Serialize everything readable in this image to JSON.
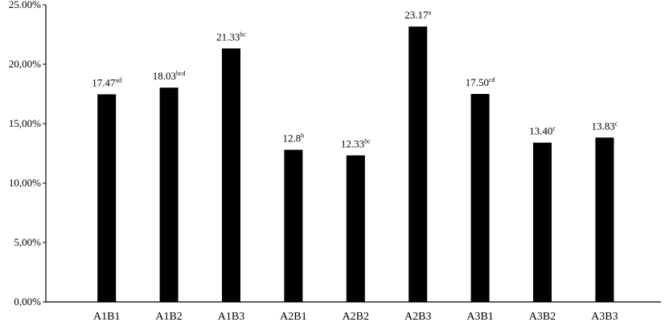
{
  "chart_data": {
    "type": "bar",
    "title": "",
    "xlabel": "",
    "ylabel": "",
    "categories": [
      "A1B1",
      "A1B2",
      "A1B3",
      "A2B1",
      "A2B2",
      "A2B3",
      "A3B1",
      "A3B2",
      "A3B3"
    ],
    "values": [
      17.47,
      18.03,
      21.33,
      12.8,
      12.33,
      23.17,
      17.5,
      13.4,
      13.83
    ],
    "data_labels": [
      {
        "value": "17.47",
        "sup": "ad"
      },
      {
        "value": "18.03",
        "sup": "bcd"
      },
      {
        "value": "21.33",
        "sup": "bc"
      },
      {
        "value": "12.8",
        "sup": "b"
      },
      {
        "value": "12.33",
        "sup": "bc"
      },
      {
        "value": "23.17",
        "sup": "a"
      },
      {
        "value": "17.50",
        "sup": "cd"
      },
      {
        "value": "13.40",
        "sup": "c"
      },
      {
        "value": "13.83",
        "sup": "c"
      }
    ],
    "y_ticks": [
      "0,00%",
      "5,00%",
      "10,00%",
      "15,00%",
      "20,00%",
      "25.00%"
    ],
    "ylim": [
      0,
      25
    ],
    "grid": false,
    "legend": "none",
    "bar_color": "#000000",
    "axis_color": "#000000"
  }
}
